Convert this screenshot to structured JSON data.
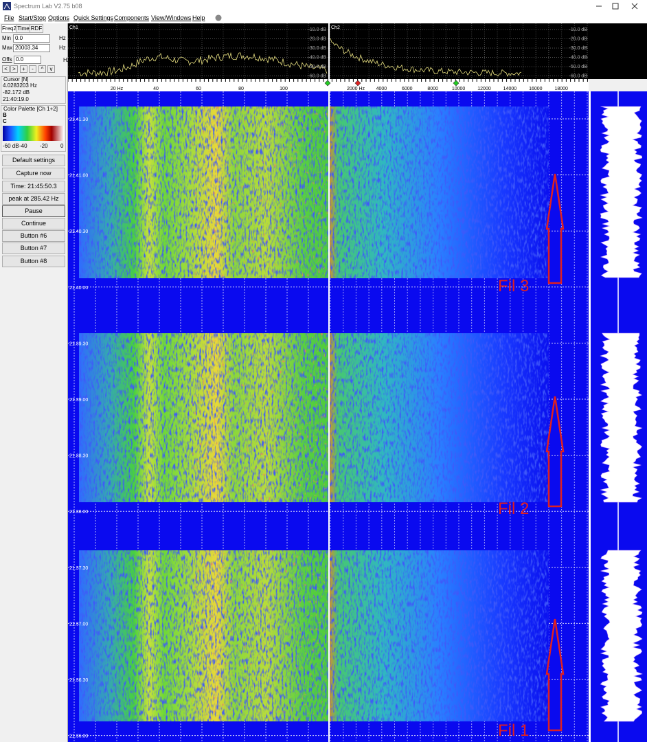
{
  "window": {
    "title": "Spectrum Lab V2.75 b08"
  },
  "menu": [
    "File",
    "Start/Stop",
    "Options",
    "Quick Settings",
    "Components",
    "View/Windows",
    "Help"
  ],
  "left_panel": {
    "tabs": [
      "Freq2",
      "Time",
      "RDF"
    ],
    "min_label": "Min",
    "min_value": "0.0",
    "max_label": "Max",
    "max_value": "20003.34",
    "offs_label": "Offs",
    "offs_value": "0.0",
    "unit": "Hz",
    "nav_buttons": [
      "<",
      ">",
      "+",
      "-",
      "^",
      "v"
    ],
    "cursor": {
      "title": "Cursor [N]",
      "lines": [
        "4.0283203 Hz",
        "-82.172 dB",
        "21:40:19.0"
      ]
    },
    "palette": {
      "title": "Color Palette [Ch 1+2]",
      "b": "B",
      "c": "C",
      "scale": [
        "-60 dB",
        "-40",
        "-20",
        "0"
      ]
    },
    "buttons": [
      "Default settings",
      "Capture now",
      "Time:  21:45:50.3",
      "peak at 285.42 Hz",
      "Pause",
      "Continue",
      "Button #6",
      "Button #7",
      "Button #8"
    ]
  },
  "spectrum": {
    "ch1": "Ch1",
    "ch2": "Ch2",
    "db_labels": [
      "-10.0 dB",
      "-20.0 dB",
      "-30.0 dB",
      "-40.0 dB",
      "-50.0 dB",
      "-60.0 dB"
    ],
    "freq_ch1": [
      "20 Hz",
      "40",
      "60",
      "80",
      "100"
    ],
    "freq_ch2": [
      "2000 Hz",
      "4000",
      "6000",
      "8000",
      "10000",
      "12000",
      "14000",
      "16000",
      "18000"
    ]
  },
  "waterfall": {
    "time_labels": [
      "21.41.30",
      "21.41.00",
      "21.40.30",
      "21.40.00",
      "21.39.30",
      "21.39.00",
      "21.38.30",
      "21.38.00",
      "21.37.30",
      "21.37.00",
      "21.36.30",
      "21.36.00"
    ]
  },
  "annotations": [
    "Fil 3",
    "Fil 2",
    "Fil 1"
  ]
}
